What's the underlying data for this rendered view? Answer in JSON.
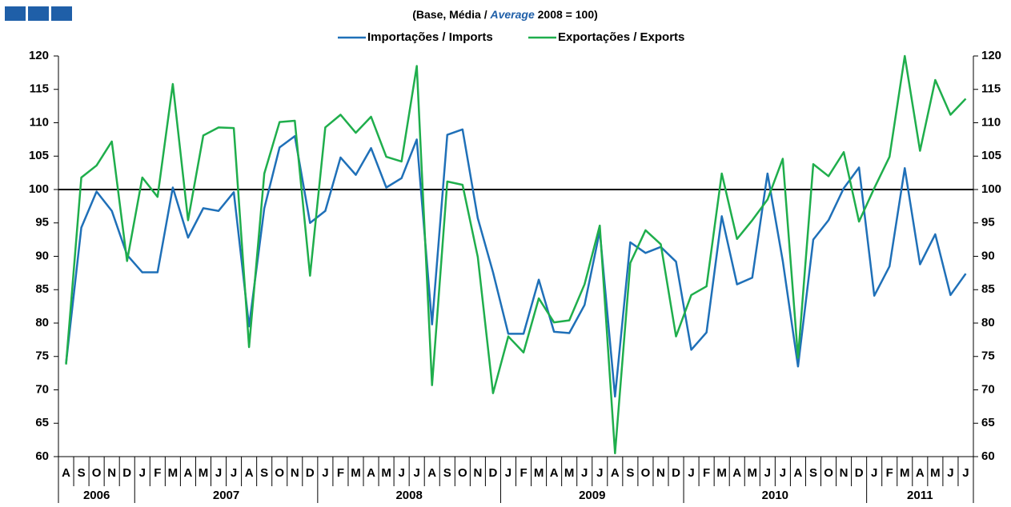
{
  "chart_data": {
    "type": "line",
    "subtitle": [
      "(Base, Média /",
      "Average",
      "2008 = 100)"
    ],
    "categories": [
      "A",
      "S",
      "O",
      "N",
      "D",
      "J",
      "F",
      "M",
      "A",
      "M",
      "J",
      "J",
      "A",
      "S",
      "O",
      "N",
      "D",
      "J",
      "F",
      "M",
      "A",
      "M",
      "J",
      "J",
      "A",
      "S",
      "O",
      "N",
      "D",
      "J",
      "F",
      "M",
      "A",
      "M",
      "J",
      "J",
      "A",
      "S",
      "O",
      "N",
      "D",
      "J",
      "F",
      "M",
      "A",
      "M",
      "J",
      "J",
      "A",
      "S",
      "O",
      "N",
      "D",
      "J",
      "F",
      "M",
      "A",
      "M",
      "J",
      "J"
    ],
    "year_groups": [
      {
        "label": "2006",
        "count": 5
      },
      {
        "label": "2007",
        "count": 12
      },
      {
        "label": "2008",
        "count": 12
      },
      {
        "label": "2009",
        "count": 12
      },
      {
        "label": "2010",
        "count": 12
      },
      {
        "label": "2011",
        "count": 7
      }
    ],
    "series": [
      {
        "name": "Importações / Imports",
        "color": "#1f70b8",
        "values": [
          74,
          94.3,
          99.7,
          96.8,
          90.2,
          87.6,
          87.6,
          100.3,
          92.8,
          97.2,
          96.8,
          99.6,
          79.5,
          97.2,
          106.3,
          108,
          95,
          96.8,
          104.8,
          102.2,
          106.2,
          100.3,
          101.7,
          107.5,
          79.8,
          108.2,
          109,
          95.7,
          87.6,
          78.4,
          78.4,
          86.5,
          78.7,
          78.5,
          82.7,
          93.8,
          69,
          92.1,
          90.5,
          91.4,
          89.2,
          76,
          78.6,
          96,
          85.8,
          86.8,
          102.4,
          89.3,
          73.5,
          92.5,
          95.4,
          100.2,
          103.3,
          84.1,
          88.5,
          103.2,
          88.8,
          93.3,
          84.2,
          87.4
        ]
      },
      {
        "name": "Exportações / Exports",
        "color": "#1fae4c",
        "values": [
          73.8,
          101.8,
          103.6,
          107.2,
          89.3,
          101.8,
          98.9,
          115.8,
          95.4,
          108.1,
          109.3,
          109.2,
          76.4,
          102.4,
          110.1,
          110.3,
          87.1,
          109.3,
          111.2,
          108.5,
          110.9,
          104.9,
          104.2,
          118.5,
          70.7,
          101.2,
          100.7,
          89.9,
          69.5,
          78,
          75.6,
          83.7,
          80.1,
          80.4,
          85.8,
          94.6,
          60.5,
          89,
          93.9,
          91.8,
          78,
          84.2,
          85.5,
          102.4,
          92.6,
          95.4,
          98.5,
          104.6,
          74.8,
          103.8,
          102,
          105.6,
          95.2,
          100.2,
          104.9,
          120,
          105.8,
          116.4,
          111.2,
          113.6
        ]
      }
    ],
    "reference_line": 100,
    "ylim": [
      60,
      120
    ],
    "yticks": [
      60,
      65,
      70,
      75,
      80,
      85,
      90,
      95,
      100,
      105,
      110,
      115,
      120
    ],
    "y2lim": [
      60,
      120
    ],
    "y2ticks": [
      60,
      65,
      70,
      75,
      80,
      85,
      90,
      95,
      100,
      105,
      110,
      115,
      120
    ],
    "legend": "top",
    "grid": false
  }
}
